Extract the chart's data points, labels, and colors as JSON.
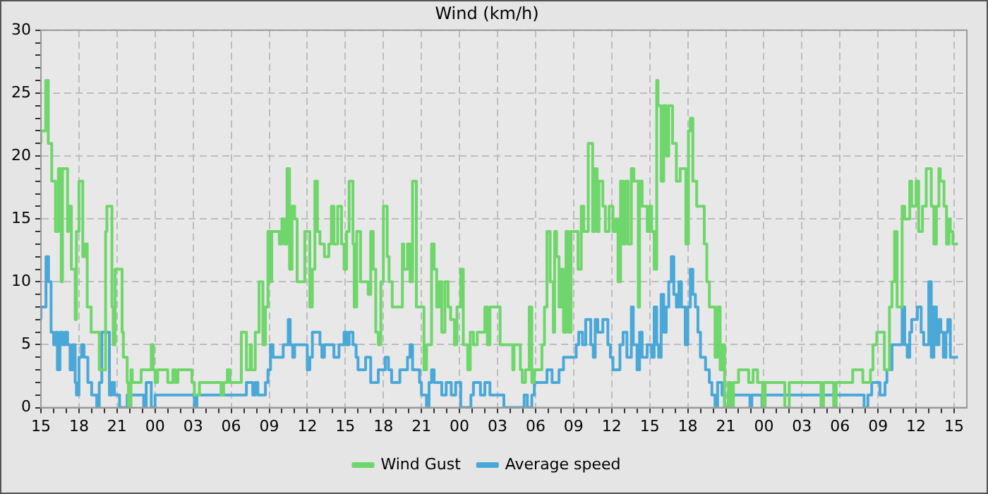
{
  "chart_data": {
    "type": "step",
    "title": "Wind (km/h)",
    "xlim": [
      15,
      88
    ],
    "ylim": [
      0,
      30
    ],
    "xticks": [
      {
        "value": 15,
        "label": "15"
      },
      {
        "value": 16,
        "label": null
      },
      {
        "value": 17,
        "label": null
      },
      {
        "value": 18,
        "label": "18"
      },
      {
        "value": 19,
        "label": null
      },
      {
        "value": 20,
        "label": null
      },
      {
        "value": 21,
        "label": "21"
      },
      {
        "value": 22,
        "label": null
      },
      {
        "value": 23,
        "label": null
      },
      {
        "value": 24,
        "label": "00"
      },
      {
        "value": 25,
        "label": null
      },
      {
        "value": 26,
        "label": null
      },
      {
        "value": 27,
        "label": "03"
      },
      {
        "value": 28,
        "label": null
      },
      {
        "value": 29,
        "label": null
      },
      {
        "value": 30,
        "label": "06"
      },
      {
        "value": 31,
        "label": null
      },
      {
        "value": 32,
        "label": null
      },
      {
        "value": 33,
        "label": "09"
      },
      {
        "value": 34,
        "label": null
      },
      {
        "value": 35,
        "label": null
      },
      {
        "value": 36,
        "label": "12"
      },
      {
        "value": 37,
        "label": null
      },
      {
        "value": 38,
        "label": null
      },
      {
        "value": 39,
        "label": "15"
      },
      {
        "value": 40,
        "label": null
      },
      {
        "value": 41,
        "label": null
      },
      {
        "value": 42,
        "label": "18"
      },
      {
        "value": 43,
        "label": null
      },
      {
        "value": 44,
        "label": null
      },
      {
        "value": 45,
        "label": "21"
      },
      {
        "value": 46,
        "label": null
      },
      {
        "value": 47,
        "label": null
      },
      {
        "value": 48,
        "label": "00"
      },
      {
        "value": 49,
        "label": null
      },
      {
        "value": 50,
        "label": null
      },
      {
        "value": 51,
        "label": "03"
      },
      {
        "value": 52,
        "label": null
      },
      {
        "value": 53,
        "label": null
      },
      {
        "value": 54,
        "label": "06"
      },
      {
        "value": 55,
        "label": null
      },
      {
        "value": 56,
        "label": null
      },
      {
        "value": 57,
        "label": "09"
      },
      {
        "value": 58,
        "label": null
      },
      {
        "value": 59,
        "label": null
      },
      {
        "value": 60,
        "label": "12"
      },
      {
        "value": 61,
        "label": null
      },
      {
        "value": 62,
        "label": null
      },
      {
        "value": 63,
        "label": "15"
      },
      {
        "value": 64,
        "label": null
      },
      {
        "value": 65,
        "label": null
      },
      {
        "value": 66,
        "label": "18"
      },
      {
        "value": 67,
        "label": null
      },
      {
        "value": 68,
        "label": null
      },
      {
        "value": 69,
        "label": "21"
      },
      {
        "value": 70,
        "label": null
      },
      {
        "value": 71,
        "label": null
      },
      {
        "value": 72,
        "label": "00"
      },
      {
        "value": 73,
        "label": null
      },
      {
        "value": 74,
        "label": null
      },
      {
        "value": 75,
        "label": "03"
      },
      {
        "value": 76,
        "label": null
      },
      {
        "value": 77,
        "label": null
      },
      {
        "value": 78,
        "label": "06"
      },
      {
        "value": 79,
        "label": null
      },
      {
        "value": 80,
        "label": null
      },
      {
        "value": 81,
        "label": "09"
      },
      {
        "value": 82,
        "label": null
      },
      {
        "value": 83,
        "label": null
      },
      {
        "value": 84,
        "label": "12"
      },
      {
        "value": 85,
        "label": null
      },
      {
        "value": 86,
        "label": null
      },
      {
        "value": 87,
        "label": "15"
      }
    ],
    "yticks": [
      0,
      {
        "value": 1,
        "label": null
      },
      {
        "value": 2,
        "label": null
      },
      {
        "value": 3,
        "label": null
      },
      {
        "value": 4,
        "label": null
      },
      5,
      {
        "value": 6,
        "label": null
      },
      {
        "value": 7,
        "label": null
      },
      {
        "value": 8,
        "label": null
      },
      {
        "value": 9,
        "label": null
      },
      10,
      {
        "value": 11,
        "label": null
      },
      {
        "value": 12,
        "label": null
      },
      {
        "value": 13,
        "label": null
      },
      {
        "value": 14,
        "label": null
      },
      15,
      {
        "value": 16,
        "label": null
      },
      {
        "value": 17,
        "label": null
      },
      {
        "value": 18,
        "label": null
      },
      {
        "value": 19,
        "label": null
      },
      20,
      {
        "value": 21,
        "label": null
      },
      {
        "value": 22,
        "label": null
      },
      {
        "value": 23,
        "label": null
      },
      {
        "value": 24,
        "label": null
      },
      25,
      {
        "value": 26,
        "label": null
      },
      {
        "value": 27,
        "label": null
      },
      {
        "value": 28,
        "label": null
      },
      {
        "value": 29,
        "label": null
      },
      30
    ],
    "grid": true,
    "legend": "bottom",
    "marker": "none",
    "line_style": "solid",
    "series": [
      {
        "name": "Wind Gust",
        "color": "#6fd66b",
        "x": [
          15.0,
          15.38,
          15.58,
          15.85,
          16.15,
          16.38,
          16.6,
          16.7,
          16.9,
          17.1,
          17.2,
          17.4,
          17.7,
          17.8,
          18.0,
          18.3,
          18.5,
          18.65,
          18.96,
          19.1,
          19.6,
          19.7,
          20.1,
          20.2,
          20.4,
          20.6,
          20.7,
          20.85,
          20.96,
          21.4,
          21.5,
          21.8,
          21.9,
          22.1,
          22.2,
          22.9,
          23.1,
          23.7,
          23.85,
          24.0,
          24.2,
          25.0,
          25.4,
          25.6,
          25.8,
          26.9,
          27.1,
          27.5,
          27.7,
          29.2,
          29.4,
          29.7,
          29.9,
          30.8,
          31.2,
          31.5,
          31.6,
          31.9,
          32.2,
          32.5,
          32.7,
          32.9,
          33.1,
          33.2,
          33.8,
          34.0,
          34.2,
          34.4,
          34.6,
          34.8,
          35.0,
          35.2,
          35.4,
          35.8,
          35.9,
          36.2,
          36.4,
          36.6,
          36.8,
          37.0,
          37.35,
          37.7,
          37.9,
          38.1,
          38.4,
          38.7,
          38.9,
          39.1,
          39.3,
          39.6,
          39.7,
          39.9,
          40.2,
          40.4,
          40.8,
          41.0,
          41.2,
          41.4,
          41.6,
          41.8,
          42.0,
          42.3,
          42.45,
          42.7,
          42.9,
          43.5,
          43.6,
          43.9,
          44.1,
          44.3,
          44.6,
          44.85,
          45.2,
          45.4,
          45.8,
          46.0,
          46.2,
          46.4,
          46.6,
          46.85,
          47.1,
          47.3,
          47.6,
          47.8,
          48.1,
          48.3,
          48.65,
          48.85,
          49.1,
          49.4,
          50.0,
          50.2,
          50.4,
          51.2,
          51.5,
          52.2,
          52.3,
          52.8,
          52.95,
          53.2,
          53.5,
          53.7,
          53.9,
          54.1,
          54.5,
          54.7,
          54.9,
          55.15,
          55.4,
          55.5,
          55.65,
          55.85,
          56.0,
          56.2,
          56.4,
          56.6,
          56.8,
          57.0,
          57.35,
          57.6,
          57.8,
          57.95,
          58.15,
          58.5,
          58.65,
          58.85,
          59.0,
          59.3,
          59.5,
          59.8,
          60.1,
          60.3,
          60.5,
          60.7,
          60.9,
          61.1,
          61.3,
          61.55,
          61.75,
          62.1,
          62.2,
          62.4,
          62.8,
          63.0,
          63.15,
          63.35,
          63.55,
          63.65,
          63.9,
          64.1,
          64.3,
          64.5,
          64.8,
          65.1,
          65.4,
          65.85,
          66.05,
          66.2,
          66.4,
          66.7,
          67.0,
          67.3,
          67.5,
          67.7,
          67.9,
          68.15,
          68.35,
          68.55,
          68.75,
          68.9,
          69.2,
          69.4,
          69.6,
          70.0,
          70.8,
          71.15,
          71.5,
          71.9,
          72.1,
          72.7,
          73.65,
          74.0,
          75.2,
          76.5,
          76.7,
          77.5,
          77.7,
          78.3,
          79.0,
          79.8,
          80.4,
          80.6,
          80.9,
          81.5,
          81.9,
          82.1,
          82.3,
          82.5,
          82.9,
          83.1,
          83.5,
          83.65,
          84.0,
          84.2,
          84.5,
          84.8,
          85.2,
          85.4,
          85.6,
          85.8,
          85.9,
          86.2,
          86.4,
          86.6,
          86.7,
          86.9,
          87.1,
          87.3
        ],
        "values": [
          21,
          22,
          26,
          21,
          18,
          14,
          19,
          10,
          19,
          19,
          14,
          16,
          11,
          7,
          14,
          18,
          12,
          13,
          8,
          6,
          6,
          3,
          3,
          14,
          16,
          16,
          8,
          5,
          11,
          11,
          6,
          4,
          2,
          0,
          3,
          2,
          3,
          3,
          5,
          3,
          2,
          3,
          2,
          3,
          2,
          3,
          2,
          1,
          2,
          2,
          1,
          2,
          3,
          2,
          6,
          3,
          5,
          3,
          6,
          10,
          5,
          8,
          14,
          10,
          14,
          13,
          15,
          13,
          19,
          11,
          16,
          15,
          10,
          10,
          14,
          14,
          8,
          11,
          18,
          14,
          13,
          12,
          13,
          16,
          13,
          16,
          13,
          11,
          14,
          18,
          13,
          8,
          14,
          10,
          10,
          9,
          14,
          11,
          6,
          5,
          10,
          16,
          12,
          10,
          8,
          8,
          13,
          11,
          13,
          10,
          18,
          8,
          8,
          3,
          5,
          13,
          11,
          8,
          10,
          6,
          10,
          8,
          7,
          5,
          8,
          11,
          5,
          3,
          6,
          5,
          6,
          8,
          5,
          8,
          5,
          5,
          3,
          5,
          3,
          2,
          3,
          8,
          2,
          3,
          3,
          5,
          8,
          14,
          10,
          6,
          14,
          12,
          8,
          11,
          6,
          14,
          6,
          14,
          14,
          11,
          16,
          14,
          14,
          21,
          14,
          19,
          14,
          18,
          16,
          14,
          16,
          14,
          15,
          10,
          18,
          13,
          18,
          13,
          19,
          18,
          8,
          18,
          16,
          14,
          16,
          14,
          11,
          26,
          24,
          18,
          24,
          20,
          24,
          21,
          18,
          19,
          13,
          22,
          23,
          18,
          16,
          16,
          13,
          10,
          8,
          8,
          4,
          8,
          3,
          5,
          0,
          2,
          0,
          2,
          3,
          2,
          3,
          2,
          0,
          2,
          2,
          0,
          2,
          2,
          0,
          2,
          0,
          2,
          2,
          3,
          2,
          3,
          5,
          6,
          3,
          8,
          10,
          14,
          8,
          16,
          15,
          18,
          16,
          18,
          14,
          16,
          19,
          16,
          13,
          16,
          19,
          18,
          16,
          13,
          15,
          14,
          13,
          13
        ]
      },
      {
        "name": "Average speed",
        "color": "#4aa8d8",
        "x": [
          15.0,
          15.4,
          15.6,
          15.8,
          16.0,
          16.2,
          16.3,
          16.5,
          16.7,
          16.9,
          17.1,
          17.3,
          17.5,
          17.7,
          17.8,
          18.0,
          18.2,
          18.4,
          18.7,
          19.0,
          19.4,
          19.6,
          19.8,
          20.4,
          20.6,
          20.8,
          21.2,
          21.8,
          23.1,
          23.3,
          23.7,
          24.0,
          27.1,
          27.3,
          31.2,
          31.7,
          31.9,
          32.1,
          32.7,
          32.9,
          33.1,
          33.3,
          34.1,
          34.5,
          34.65,
          34.85,
          35.0,
          36.0,
          36.2,
          36.4,
          37.0,
          37.15,
          37.35,
          38.1,
          38.5,
          38.9,
          39.1,
          39.3,
          39.6,
          39.85,
          40.0,
          40.6,
          41.0,
          41.6,
          42.15,
          42.4,
          42.65,
          43.3,
          43.9,
          44.1,
          44.3,
          44.85,
          45.0,
          45.4,
          45.6,
          45.8,
          46.0,
          46.6,
          46.95,
          47.35,
          47.7,
          48.1,
          48.9,
          49.1,
          49.65,
          50.0,
          50.4,
          51.5,
          53.1,
          53.35,
          53.7,
          53.9,
          54.9,
          55.3,
          55.85,
          56.2,
          57.2,
          57.4,
          57.7,
          57.95,
          58.35,
          58.55,
          58.7,
          58.9,
          59.3,
          59.7,
          59.9,
          60.1,
          60.65,
          60.9,
          61.2,
          61.55,
          61.7,
          62.0,
          62.2,
          62.4,
          62.8,
          63.15,
          63.35,
          63.55,
          63.7,
          63.9,
          64.1,
          64.3,
          64.5,
          64.7,
          64.9,
          65.1,
          65.3,
          65.5,
          65.8,
          66.0,
          66.2,
          66.4,
          66.6,
          66.8,
          67.0,
          67.4,
          67.7,
          67.9,
          68.15,
          68.35,
          68.7,
          68.9,
          69.2,
          70.9,
          71.05,
          71.85,
          72.0,
          79.9,
          80.2,
          80.5,
          81.15,
          81.55,
          81.7,
          82.1,
          82.9,
          83.1,
          83.3,
          83.5,
          83.65,
          84.1,
          84.4,
          84.6,
          85.0,
          85.2,
          85.4,
          85.6,
          85.8,
          85.95,
          86.15,
          86.35,
          86.5,
          86.7,
          86.9,
          87.3
        ],
        "values": [
          7,
          8,
          12,
          10,
          6,
          5,
          6,
          3,
          6,
          5,
          6,
          5,
          3,
          5,
          2,
          1,
          4,
          5,
          4,
          2,
          1,
          0,
          2,
          6,
          1,
          2,
          1,
          0,
          1,
          0,
          2,
          0,
          1,
          0,
          1,
          2,
          1,
          2,
          1,
          2,
          3,
          5,
          4,
          5,
          7,
          5,
          4,
          5,
          3,
          4,
          6,
          5,
          4,
          5,
          4,
          5,
          6,
          5,
          6,
          5,
          4,
          3,
          4,
          2,
          3,
          4,
          3,
          2,
          3,
          4,
          5,
          3,
          2,
          1,
          0,
          2,
          3,
          2,
          1,
          2,
          1,
          2,
          0,
          1,
          2,
          1,
          2,
          1,
          0,
          1,
          0,
          1,
          2,
          3,
          2,
          3,
          4,
          5,
          6,
          5,
          7,
          5,
          4,
          7,
          6,
          7,
          5,
          4,
          3,
          5,
          6,
          4,
          8,
          5,
          3,
          6,
          4,
          5,
          4,
          8,
          5,
          4,
          9,
          6,
          8,
          10,
          12,
          9,
          8,
          10,
          8,
          5,
          8,
          11,
          9,
          8,
          6,
          4,
          3,
          2,
          1,
          0,
          2,
          1,
          0,
          1,
          0,
          1,
          0,
          1,
          0,
          1,
          2,
          1,
          2,
          3,
          5,
          8,
          5,
          4,
          6,
          7,
          8,
          6,
          5,
          10,
          4,
          8,
          5,
          7,
          6,
          4,
          6,
          7,
          4,
          4
        ]
      }
    ]
  }
}
